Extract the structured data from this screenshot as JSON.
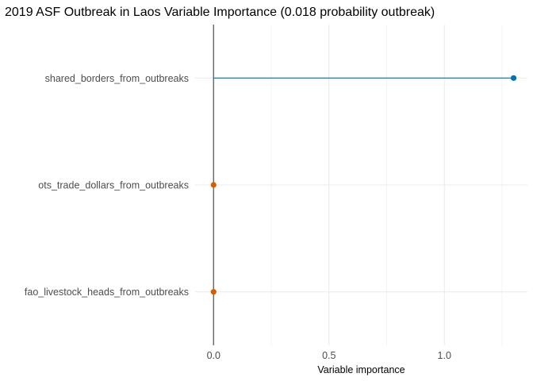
{
  "chart_data": {
    "type": "lollipop",
    "title": "2019 ASF Outbreak in Laos Variable Importance (0.018 probability outbreak)",
    "xlabel": "Variable importance",
    "ylabel": "",
    "xlim": [
      -0.08,
      1.36
    ],
    "x_ticks": [
      0.0,
      0.5,
      1.0
    ],
    "x_tick_labels": [
      "0.0",
      "0.5",
      "1.0"
    ],
    "x_minor_ticks": [
      0.25,
      0.75,
      1.25
    ],
    "reference_line": 0,
    "grid": true,
    "legend": "none",
    "categories": [
      "shared_borders_from_outbreaks",
      "ots_trade_dollars_from_outbreaks",
      "fao_livestock_heads_from_outbreaks"
    ],
    "values": [
      1.3,
      0.0,
      0.0
    ],
    "point_colors": [
      "#0072b2",
      "#d55e00",
      "#d55e00"
    ]
  },
  "colors": {
    "grid": "#ebebeb",
    "zero_line": "#666666",
    "background": "#ffffff"
  }
}
